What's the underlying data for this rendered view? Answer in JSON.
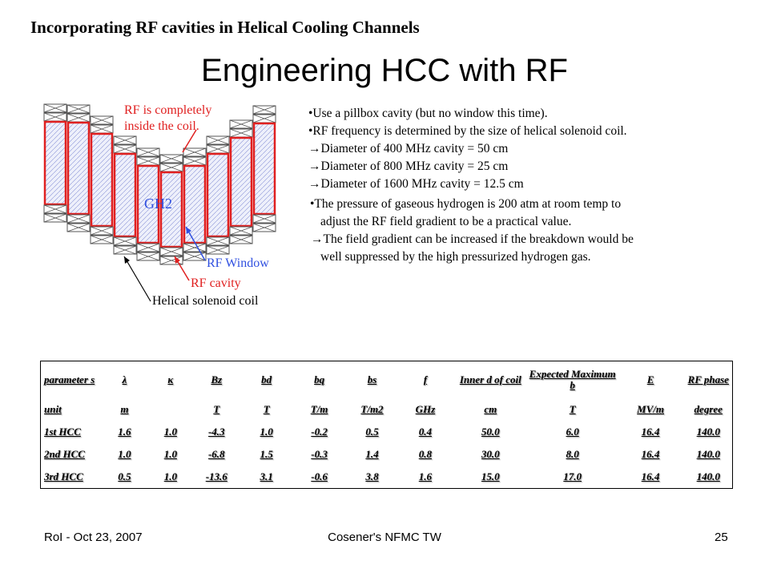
{
  "header": {
    "title": "Incorporating RF cavities in Helical Cooling Channels"
  },
  "title": "Engineering HCC with RF",
  "diagram": {
    "note": [
      "RF is completely",
      "inside the coil."
    ],
    "gas": "GH2",
    "window": "RF Window",
    "cavity": "RF cavity",
    "coil": "Helical solenoid coil"
  },
  "bullets": [
    "•Use a pillbox cavity (but no window this time).",
    "•RF frequency is determined by the size of helical solenoid coil.",
    "→Diameter of 400 MHz cavity = 50 cm",
    "→Diameter of 800 MHz cavity = 25 cm",
    "→Diameter of 1600 MHz cavity = 12.5 cm"
  ],
  "notes": [
    "•The pressure of gaseous hydrogen is 200 atm at room temp to",
    "adjust the RF field gradient to be a practical value.",
    "→The field gradient can be increased if the breakdown would be",
    "well suppressed by the high pressurized hydrogen gas."
  ],
  "table": {
    "header": [
      "parameter s",
      "λ",
      "κ",
      "Bz",
      "bd",
      "bq",
      "bs",
      "f",
      "Inner d of coil",
      "Expected Maximum b",
      "E",
      "RF phase"
    ],
    "units": [
      "unit",
      "m",
      "",
      "T",
      "T",
      "T/m",
      "T/m2",
      "GHz",
      "cm",
      "T",
      "MV/m",
      "degree"
    ],
    "rows": [
      [
        "1st HCC",
        "1.6",
        "1.0",
        "-4.3",
        "1.0",
        "-0.2",
        "0.5",
        "0.4",
        "50.0",
        "6.0",
        "16.4",
        "140.0"
      ],
      [
        "2nd HCC",
        "1.0",
        "1.0",
        "-6.8",
        "1.5",
        "-0.3",
        "1.4",
        "0.8",
        "30.0",
        "8.0",
        "16.4",
        "140.0"
      ],
      [
        "3rd HCC",
        "0.5",
        "1.0",
        "-13.6",
        "3.1",
        "-0.6",
        "3.8",
        "1.6",
        "15.0",
        "17.0",
        "16.4",
        "140.0"
      ]
    ]
  },
  "footer": {
    "left": "RoI - Oct 23, 2007",
    "center": "Cosener's NFMC TW",
    "right": "25"
  }
}
